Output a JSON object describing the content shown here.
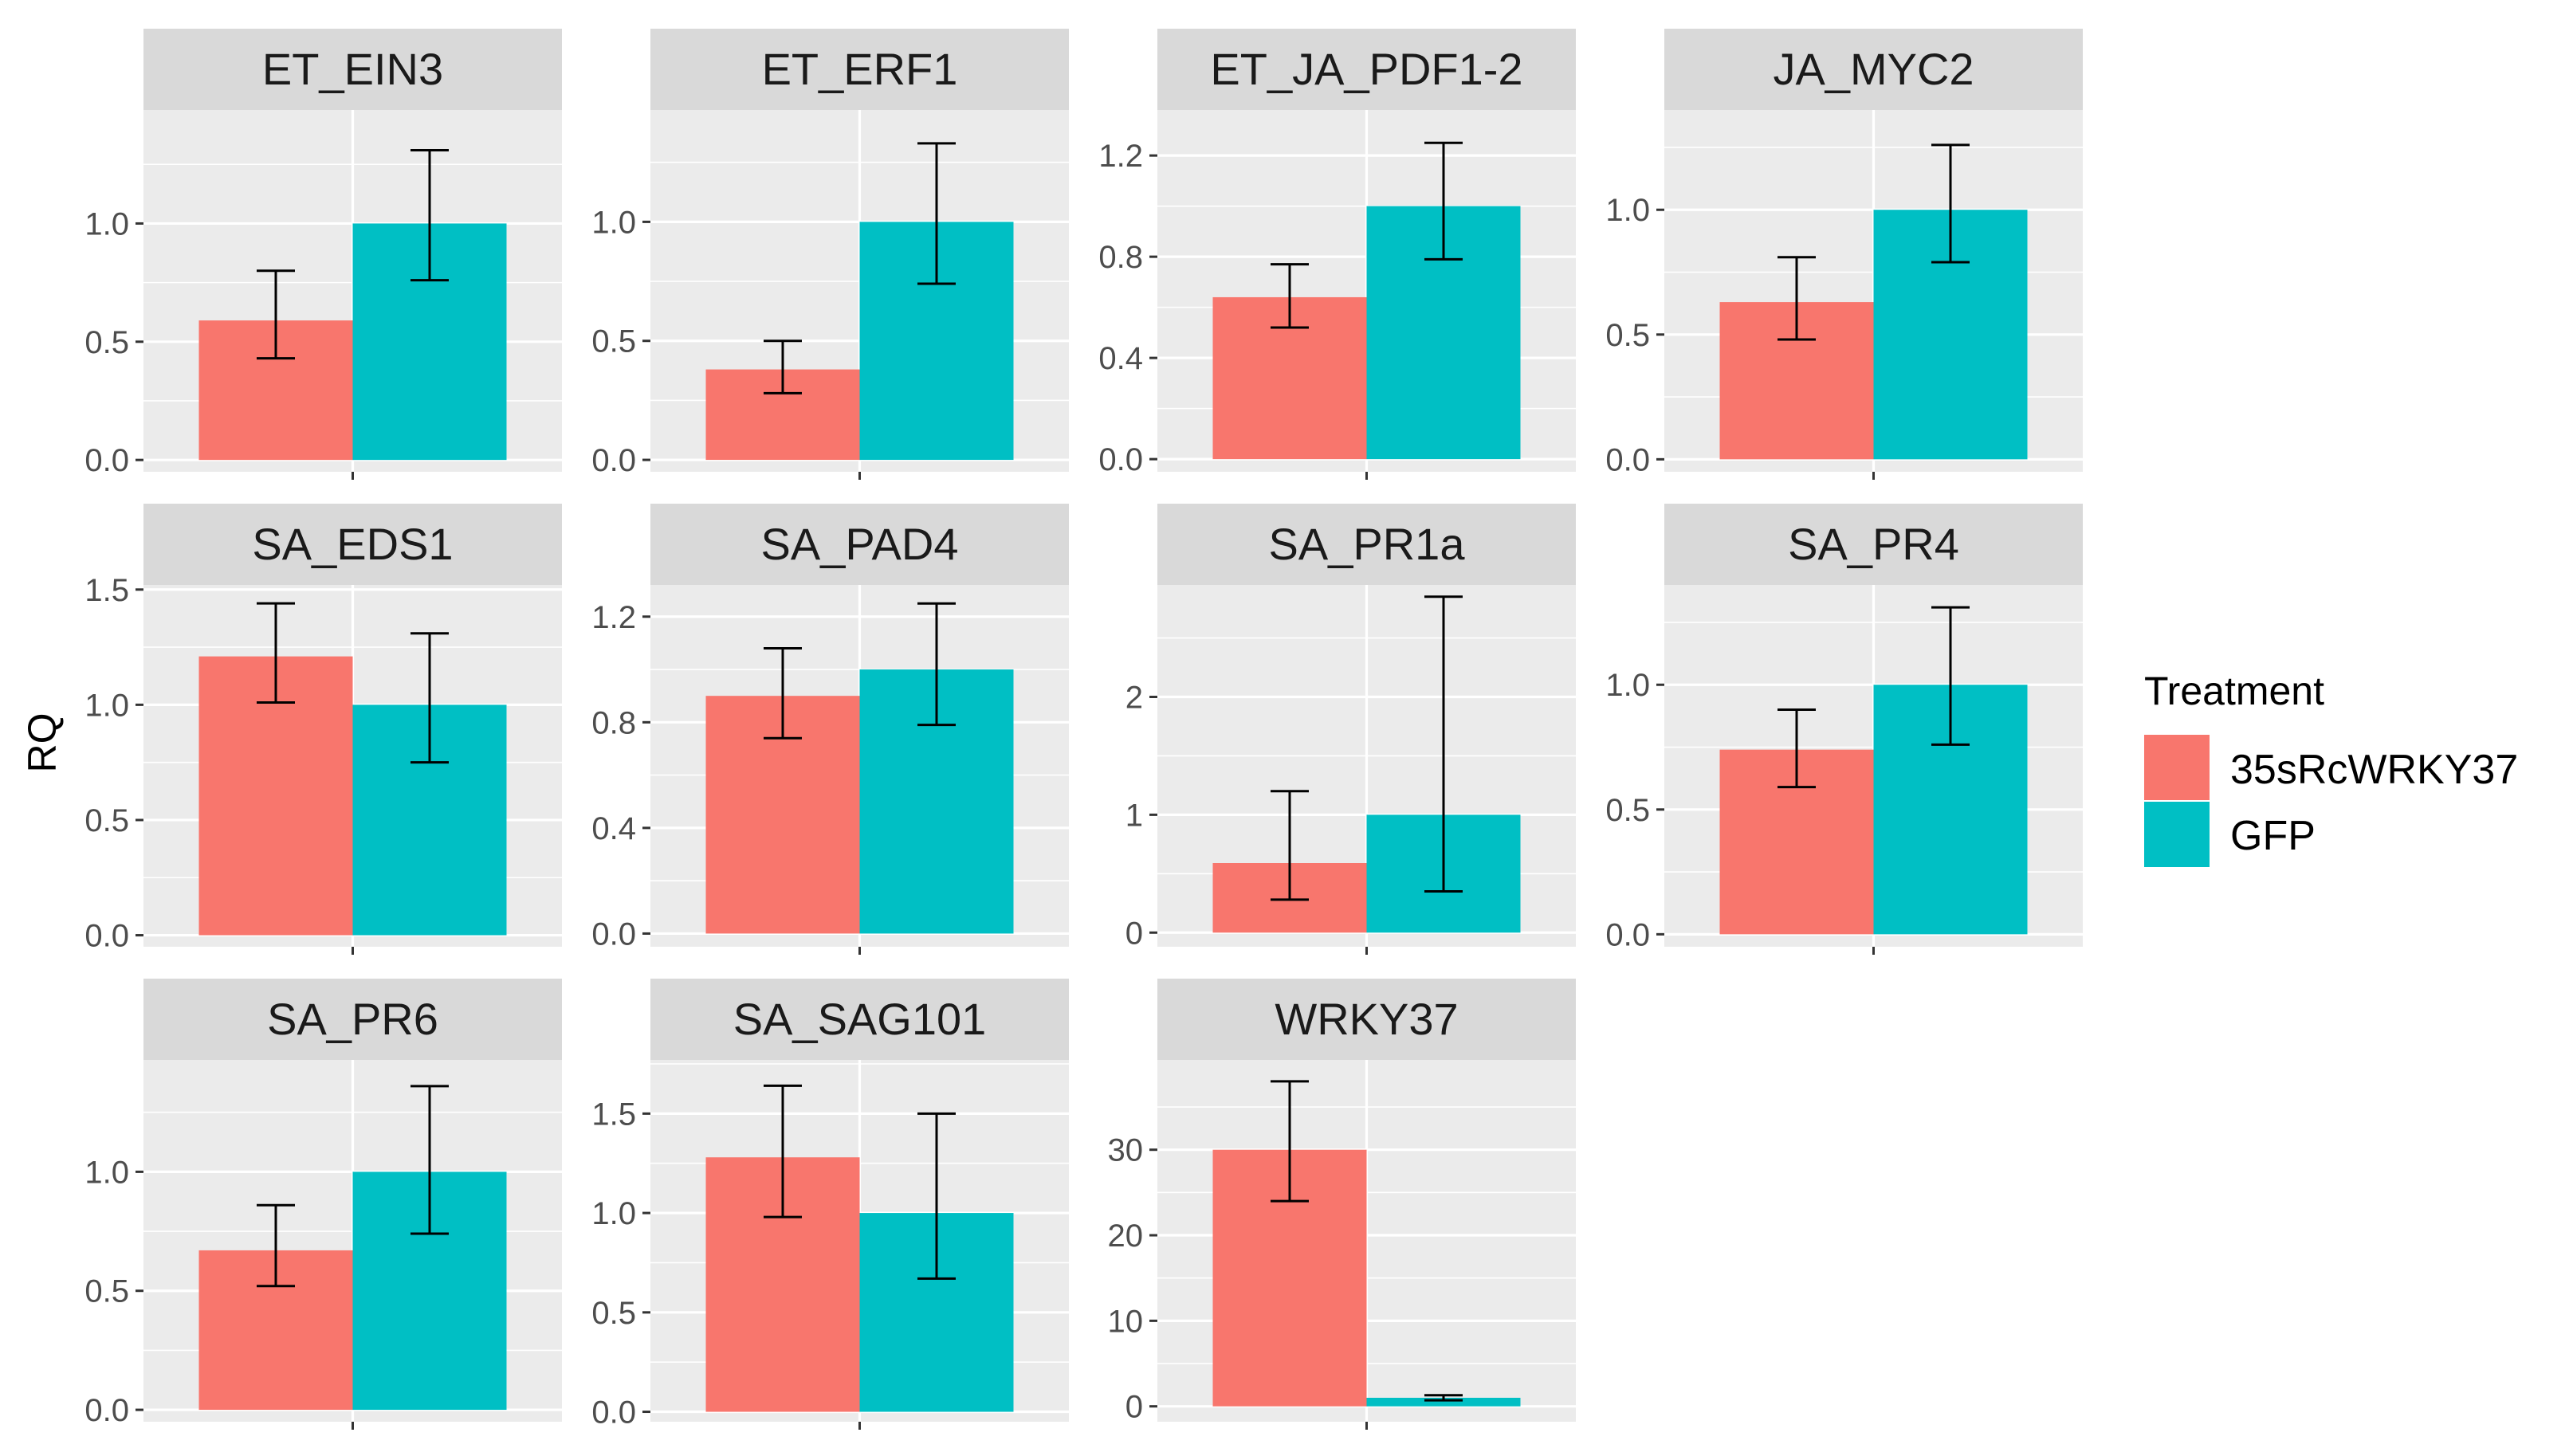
{
  "chart_data": {
    "type": "bar",
    "facet": "wrap",
    "ylabel": "RQ",
    "xlabel": "",
    "legend": {
      "title": "Treatment",
      "position": "right",
      "entries": [
        {
          "name": "35sRcWRKY37",
          "color": "#F8766D"
        },
        {
          "name": "GFP",
          "color": "#00BFC4"
        }
      ]
    },
    "panel_background": "#EBEBEB",
    "strip_background": "#D9D9D9",
    "grid": true,
    "panels": [
      {
        "title": "ET_EIN3",
        "ylim": [
          -0.05,
          1.48
        ],
        "ticks": [
          0.0,
          0.5,
          1.0
        ],
        "tick_labels": [
          "0.0",
          "0.5",
          "1.0"
        ],
        "bars": [
          {
            "series": "35sRcWRKY37",
            "value": 0.59,
            "err_low": 0.43,
            "err_high": 0.8
          },
          {
            "series": "GFP",
            "value": 1.0,
            "err_low": 0.76,
            "err_high": 1.31
          }
        ]
      },
      {
        "title": "ET_ERF1",
        "ylim": [
          -0.05,
          1.47
        ],
        "ticks": [
          0.0,
          0.5,
          1.0
        ],
        "tick_labels": [
          "0.0",
          "0.5",
          "1.0"
        ],
        "bars": [
          {
            "series": "35sRcWRKY37",
            "value": 0.38,
            "err_low": 0.28,
            "err_high": 0.5
          },
          {
            "series": "GFP",
            "value": 1.0,
            "err_low": 0.74,
            "err_high": 1.33
          }
        ]
      },
      {
        "title": "ET_JA_PDF1-2",
        "ylim": [
          -0.05,
          1.38
        ],
        "ticks": [
          0.0,
          0.4,
          0.8,
          1.2
        ],
        "tick_labels": [
          "0.0",
          "0.4",
          "0.8",
          "1.2"
        ],
        "bars": [
          {
            "series": "35sRcWRKY37",
            "value": 0.64,
            "err_low": 0.52,
            "err_high": 0.77
          },
          {
            "series": "GFP",
            "value": 1.0,
            "err_low": 0.79,
            "err_high": 1.25
          }
        ]
      },
      {
        "title": "JA_MYC2",
        "ylim": [
          -0.05,
          1.4
        ],
        "ticks": [
          0.0,
          0.5,
          1.0
        ],
        "tick_labels": [
          "0.0",
          "0.5",
          "1.0"
        ],
        "bars": [
          {
            "series": "35sRcWRKY37",
            "value": 0.63,
            "err_low": 0.48,
            "err_high": 0.81
          },
          {
            "series": "GFP",
            "value": 1.0,
            "err_low": 0.79,
            "err_high": 1.26
          }
        ]
      },
      {
        "title": "SA_EDS1",
        "ylim": [
          -0.05,
          1.52
        ],
        "ticks": [
          0.0,
          0.5,
          1.0,
          1.5
        ],
        "tick_labels": [
          "0.0",
          "0.5",
          "1.0",
          "1.5"
        ],
        "bars": [
          {
            "series": "35sRcWRKY37",
            "value": 1.21,
            "err_low": 1.01,
            "err_high": 1.44
          },
          {
            "series": "GFP",
            "value": 1.0,
            "err_low": 0.75,
            "err_high": 1.31
          }
        ]
      },
      {
        "title": "SA_PAD4",
        "ylim": [
          -0.05,
          1.32
        ],
        "ticks": [
          0.0,
          0.4,
          0.8,
          1.2
        ],
        "tick_labels": [
          "0.0",
          "0.4",
          "0.8",
          "1.2"
        ],
        "bars": [
          {
            "series": "35sRcWRKY37",
            "value": 0.9,
            "err_low": 0.74,
            "err_high": 1.08
          },
          {
            "series": "GFP",
            "value": 1.0,
            "err_low": 0.79,
            "err_high": 1.25
          }
        ]
      },
      {
        "title": "SA_PR1a",
        "ylim": [
          -0.12,
          2.95
        ],
        "ticks": [
          0,
          1,
          2
        ],
        "tick_labels": [
          "0",
          "1",
          "2"
        ],
        "bars": [
          {
            "series": "35sRcWRKY37",
            "value": 0.59,
            "err_low": 0.28,
            "err_high": 1.2
          },
          {
            "series": "GFP",
            "value": 1.0,
            "err_low": 0.35,
            "err_high": 2.85
          }
        ]
      },
      {
        "title": "SA_PR4",
        "ylim": [
          -0.05,
          1.4
        ],
        "ticks": [
          0.0,
          0.5,
          1.0
        ],
        "tick_labels": [
          "0.0",
          "0.5",
          "1.0"
        ],
        "bars": [
          {
            "series": "35sRcWRKY37",
            "value": 0.74,
            "err_low": 0.59,
            "err_high": 0.9
          },
          {
            "series": "GFP",
            "value": 1.0,
            "err_low": 0.76,
            "err_high": 1.31
          }
        ]
      },
      {
        "title": "SA_PR6",
        "ylim": [
          -0.05,
          1.47
        ],
        "ticks": [
          0.0,
          0.5,
          1.0
        ],
        "tick_labels": [
          "0.0",
          "0.5",
          "1.0"
        ],
        "bars": [
          {
            "series": "35sRcWRKY37",
            "value": 0.67,
            "err_low": 0.52,
            "err_high": 0.86
          },
          {
            "series": "GFP",
            "value": 1.0,
            "err_low": 0.74,
            "err_high": 1.36
          }
        ]
      },
      {
        "title": "SA_SAG101",
        "ylim": [
          -0.05,
          1.77
        ],
        "ticks": [
          0.0,
          0.5,
          1.0,
          1.5
        ],
        "tick_labels": [
          "0.0",
          "0.5",
          "1.0",
          "1.5"
        ],
        "bars": [
          {
            "series": "35sRcWRKY37",
            "value": 1.28,
            "err_low": 0.98,
            "err_high": 1.64
          },
          {
            "series": "GFP",
            "value": 1.0,
            "err_low": 0.67,
            "err_high": 1.5
          }
        ]
      },
      {
        "title": "WRKY37",
        "ylim": [
          -1.8,
          40.5
        ],
        "ticks": [
          0,
          10,
          20,
          30
        ],
        "tick_labels": [
          "0",
          "10",
          "20",
          "30"
        ],
        "bars": [
          {
            "series": "35sRcWRKY37",
            "value": 30.0,
            "err_low": 24.0,
            "err_high": 38.0
          },
          {
            "series": "GFP",
            "value": 1.0,
            "err_low": 0.7,
            "err_high": 1.3
          }
        ]
      }
    ]
  }
}
